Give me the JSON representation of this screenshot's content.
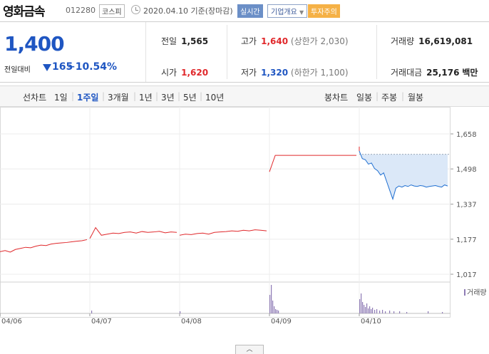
{
  "header": {
    "stock_name": "영화금속",
    "stock_code": "012280",
    "market": "코스피",
    "date_text": "2020.04.10 기준(장마감)",
    "realtime_label": "실시간",
    "company_label": "기업개요",
    "warning_label": "투자주의"
  },
  "summary": {
    "current_price": "1,400",
    "vs_prev_label": "전일대비",
    "change": "165",
    "change_rate": "−10.54%",
    "prev_close_label": "전일",
    "prev_close": "1,565",
    "open_label": "시가",
    "open": "1,620",
    "high_label": "고가",
    "high": "1,640",
    "upper_limit": "(상한가 2,030)",
    "low_label": "저가",
    "low": "1,320",
    "lower_limit": "(하한가 1,100)",
    "volume_label": "거래량",
    "volume": "16,619,081",
    "amount_label": "거래대금",
    "amount": "25,176",
    "amount_unit": "백만"
  },
  "tabs": {
    "line_label": "선차트",
    "periods": [
      "1일",
      "1주일",
      "3개월",
      "1년",
      "3년",
      "5년",
      "10년"
    ],
    "selected_period": "1주일",
    "candle_label": "봉차트",
    "candle_periods": [
      "일봉",
      "주봉",
      "월봉"
    ]
  },
  "chart_data": {
    "type": "line",
    "x_tick_labels": [
      "04/06",
      "04/07",
      "04/08",
      "04/09",
      "04/10"
    ],
    "y_tick_labels": [
      "1,658",
      "1,498",
      "1,337",
      "1,177",
      "1,017"
    ],
    "ylim": [
      1017,
      1658
    ],
    "volume_label": "거래량",
    "colors": {
      "up": "#e0282b",
      "down": "#1f6fd1",
      "fill": "#dbe8f8",
      "volume": "#8e7bb5",
      "grid": "#e6e6e6"
    },
    "series": [
      {
        "segment": "04/06",
        "values": [
          1120,
          1125,
          1118,
          1130,
          1135,
          1140,
          1138,
          1145,
          1150,
          1148,
          1155,
          1158,
          1160,
          1162,
          1165,
          1168,
          1170,
          1175
        ]
      },
      {
        "segment": "04/07",
        "values": [
          1180,
          1230,
          1195,
          1200,
          1205,
          1203,
          1208,
          1210,
          1205,
          1212,
          1208,
          1210,
          1213,
          1206,
          1210,
          1208
        ]
      },
      {
        "segment": "04/08",
        "values": [
          1195,
          1200,
          1198,
          1203,
          1205,
          1200,
          1208,
          1210,
          1212,
          1215,
          1213,
          1218,
          1215,
          1220,
          1218,
          1215
        ]
      },
      {
        "segment": "04/09",
        "values": [
          1485,
          1560,
          1560,
          1560,
          1560,
          1560,
          1560,
          1560,
          1560,
          1560,
          1560,
          1560,
          1560,
          1560,
          1560,
          1560
        ]
      },
      {
        "segment": "04/10",
        "values": [
          1580,
          1545,
          1540,
          1520,
          1525,
          1500,
          1490,
          1470,
          1480,
          1440,
          1400,
          1360,
          1410,
          1420,
          1415,
          1422,
          1418,
          1425,
          1420,
          1418,
          1422,
          1420,
          1415,
          1418,
          1420,
          1422,
          1418,
          1415,
          1425,
          1420
        ]
      }
    ],
    "reference_close": 1565
  }
}
